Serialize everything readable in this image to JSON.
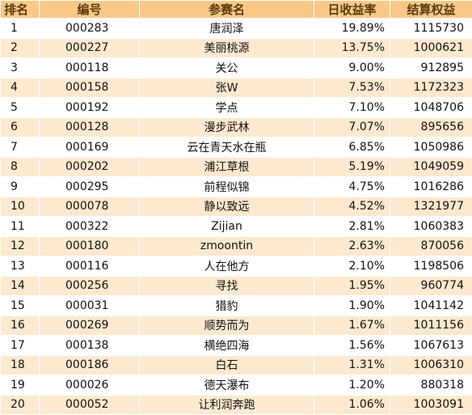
{
  "headers": {
    "rank": "排名",
    "id": "编号",
    "name": "参赛名",
    "rate": "日收益率",
    "equity": "结算权益"
  },
  "rows": [
    {
      "rank": "1",
      "id": "000283",
      "name": "唐润泽",
      "rate": "19.89%",
      "equity": "1115730"
    },
    {
      "rank": "2",
      "id": "000227",
      "name": "美丽桃源",
      "rate": "13.75%",
      "equity": "1000621"
    },
    {
      "rank": "3",
      "id": "000118",
      "name": "关公",
      "rate": "9.00%",
      "equity": "912895"
    },
    {
      "rank": "4",
      "id": "000158",
      "name": "张W",
      "rate": "7.53%",
      "equity": "1172323"
    },
    {
      "rank": "5",
      "id": "000192",
      "name": "学点",
      "rate": "7.10%",
      "equity": "1048706"
    },
    {
      "rank": "6",
      "id": "000128",
      "name": "漫步武林",
      "rate": "7.07%",
      "equity": "895656"
    },
    {
      "rank": "7",
      "id": "000169",
      "name": "云在青天水在瓶",
      "rate": "6.85%",
      "equity": "1050986"
    },
    {
      "rank": "8",
      "id": "000202",
      "name": "浦江草根",
      "rate": "5.19%",
      "equity": "1049059"
    },
    {
      "rank": "9",
      "id": "000295",
      "name": "前程似锦",
      "rate": "4.75%",
      "equity": "1016286"
    },
    {
      "rank": "10",
      "id": "000078",
      "name": "静以致远",
      "rate": "4.52%",
      "equity": "1321977"
    },
    {
      "rank": "11",
      "id": "000322",
      "name": "Zijian",
      "rate": "2.81%",
      "equity": "1060383"
    },
    {
      "rank": "12",
      "id": "000180",
      "name": "zmoontin",
      "rate": "2.63%",
      "equity": "870056"
    },
    {
      "rank": "13",
      "id": "000116",
      "name": "人在他方",
      "rate": "2.10%",
      "equity": "1198506"
    },
    {
      "rank": "14",
      "id": "000256",
      "name": "寻找",
      "rate": "1.95%",
      "equity": "960774"
    },
    {
      "rank": "15",
      "id": "000031",
      "name": "猎豹",
      "rate": "1.90%",
      "equity": "1041142"
    },
    {
      "rank": "16",
      "id": "000269",
      "name": "顺势而为",
      "rate": "1.67%",
      "equity": "1011156"
    },
    {
      "rank": "17",
      "id": "000138",
      "name": "横绝四海",
      "rate": "1.56%",
      "equity": "1067613"
    },
    {
      "rank": "18",
      "id": "000186",
      "name": "白石",
      "rate": "1.31%",
      "equity": "1006310"
    },
    {
      "rank": "19",
      "id": "000026",
      "name": "德天瀑布",
      "rate": "1.20%",
      "equity": "880318"
    },
    {
      "rank": "20",
      "id": "000052",
      "name": "让利润奔跑",
      "rate": "1.06%",
      "equity": "1003091"
    }
  ]
}
